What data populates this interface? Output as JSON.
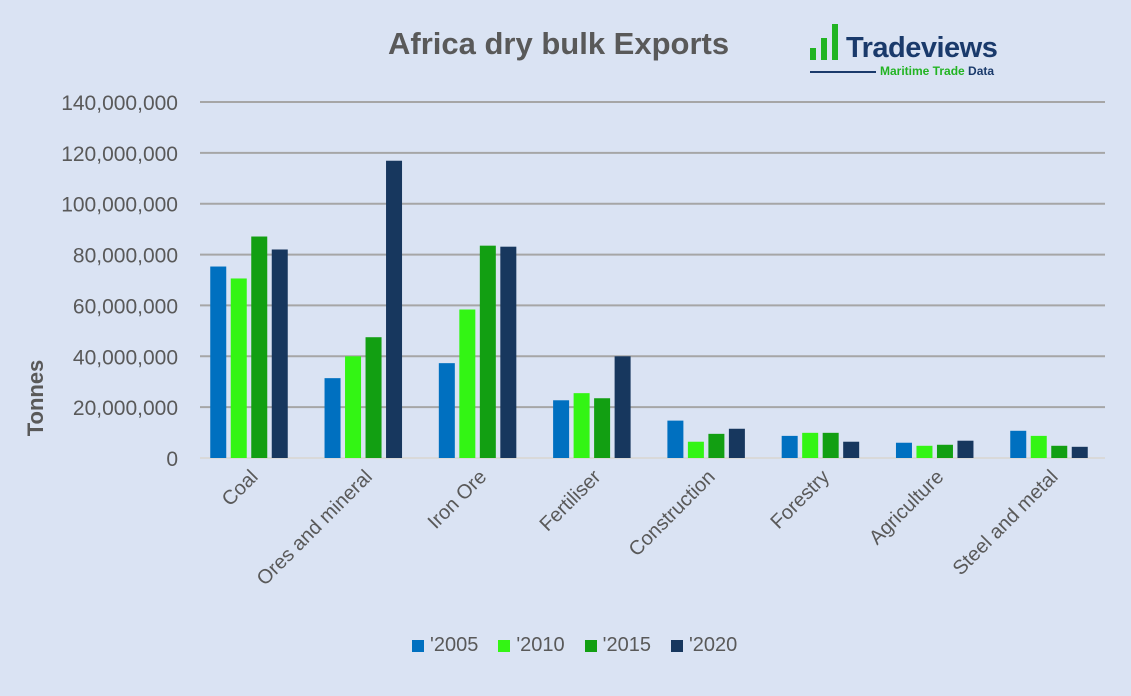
{
  "chart_data": {
    "type": "bar",
    "title": "Africa dry bulk Exports",
    "xlabel": "",
    "ylabel": "Tonnes",
    "ylim": [
      0,
      140000000
    ],
    "yticks": [
      0,
      20000000,
      40000000,
      60000000,
      80000000,
      100000000,
      120000000,
      140000000
    ],
    "ytick_labels": [
      "0",
      "20,000,000",
      "40,000,000",
      "60,000,000",
      "80,000,000",
      "100,000,000",
      "120,000,000",
      "140,000,000"
    ],
    "grid": true,
    "legend_position": "bottom",
    "categories": [
      "Coal",
      "Ores and mineral",
      "Iron Ore",
      "Fertiliser",
      "Construction",
      "Forestry",
      "Agriculture",
      "Steel and metal"
    ],
    "series": [
      {
        "name": "'2005",
        "color": "#0070c0",
        "values": [
          75300000,
          31400000,
          37300000,
          22700000,
          14700000,
          8700000,
          6000000,
          10700000
        ]
      },
      {
        "name": "'2010",
        "color": "#33f514",
        "values": [
          70600000,
          40000000,
          58400000,
          25500000,
          6400000,
          9900000,
          4800000,
          8700000
        ]
      },
      {
        "name": "'2015",
        "color": "#129f12",
        "values": [
          87100000,
          47500000,
          83500000,
          23500000,
          9500000,
          9900000,
          5200000,
          4800000
        ]
      },
      {
        "name": "'2020",
        "color": "#17375e",
        "values": [
          82000000,
          116900000,
          83100000,
          40000000,
          11500000,
          6400000,
          6800000,
          4400000
        ]
      }
    ]
  },
  "logo": {
    "name": "Tradeviews",
    "tagline_a": "Maritime Trade",
    "tagline_b": "Data"
  }
}
